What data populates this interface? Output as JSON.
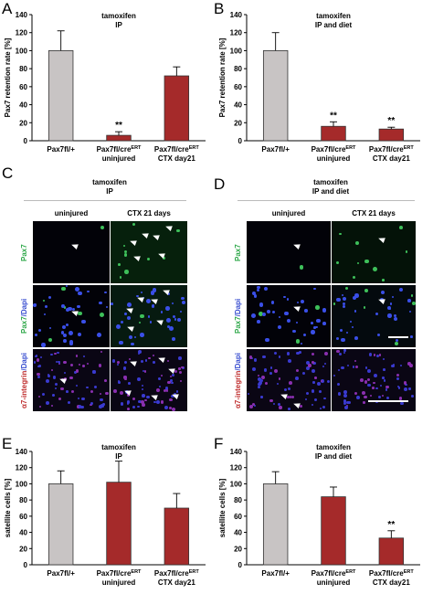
{
  "panels": {
    "A": "A",
    "B": "B",
    "C": "C",
    "D": "D",
    "E": "E",
    "F": "F"
  },
  "chart_data": [
    {
      "panel": "A",
      "type": "bar",
      "title_line1": "tamoxifen",
      "title_line2": "IP",
      "ylabel": "Pax7 retention rate [%]",
      "ylim": [
        0,
        140
      ],
      "yticks": [
        "0",
        "20",
        "40",
        "60",
        "80",
        "100",
        "120",
        "140"
      ],
      "categories": [
        {
          "line1": "Pax7fl/+",
          "line2": ""
        },
        {
          "line1": "Pax7fl/cre",
          "sup": "ERT",
          "line2": "uninjured"
        },
        {
          "line1": "Pax7fl/cre",
          "sup": "ERT",
          "line2": "CTX day21"
        }
      ],
      "values": [
        100,
        6,
        72
      ],
      "errors": [
        22,
        4,
        10
      ],
      "colors": [
        "#c8c4c4",
        "#a52a2a",
        "#a52a2a"
      ],
      "annotations": [
        "",
        "**",
        ""
      ]
    },
    {
      "panel": "B",
      "type": "bar",
      "title_line1": "tamoxifen",
      "title_line2": "IP and diet",
      "ylabel": "Pax7 retention rate [%]",
      "ylim": [
        0,
        140
      ],
      "yticks": [
        "0",
        "20",
        "40",
        "60",
        "80",
        "100",
        "120",
        "140"
      ],
      "categories": [
        {
          "line1": "Pax7fl/+",
          "line2": ""
        },
        {
          "line1": "Pax7fl/cre",
          "sup": "ERT",
          "line2": "uninjured"
        },
        {
          "line1": "Pax7fl/cre",
          "sup": "ERT",
          "line2": "CTX day21"
        }
      ],
      "values": [
        100,
        16,
        13
      ],
      "errors": [
        20,
        5,
        2
      ],
      "colors": [
        "#c8c4c4",
        "#a52a2a",
        "#a52a2a"
      ],
      "annotations": [
        "",
        "**",
        "**"
      ]
    },
    {
      "panel": "E",
      "type": "bar",
      "title_line1": "tamoxifen",
      "title_line2": "IP",
      "ylabel": "satellite cells [%]",
      "ylim": [
        0,
        140
      ],
      "yticks": [
        "0",
        "20",
        "40",
        "60",
        "80",
        "100",
        "120",
        "140"
      ],
      "categories": [
        {
          "line1": "Pax7fl/+",
          "line2": ""
        },
        {
          "line1": "Pax7fl/cre",
          "sup": "ERT",
          "line2": "uninjured"
        },
        {
          "line1": "Pax7fl/cre",
          "sup": "ERT",
          "line2": "CTX day21"
        }
      ],
      "values": [
        100,
        102,
        70
      ],
      "errors": [
        16,
        26,
        18
      ],
      "colors": [
        "#c8c4c4",
        "#a52a2a",
        "#a52a2a"
      ],
      "annotations": [
        "",
        "",
        ""
      ]
    },
    {
      "panel": "F",
      "type": "bar",
      "title_line1": "tamoxifen",
      "title_line2": "IP and diet",
      "ylabel": "satellite cells [%]",
      "ylim": [
        0,
        140
      ],
      "yticks": [
        "0",
        "20",
        "40",
        "60",
        "80",
        "100",
        "120",
        "140"
      ],
      "categories": [
        {
          "line1": "Pax7fl/+",
          "line2": ""
        },
        {
          "line1": "Pax7fl/cre",
          "sup": "ERT",
          "line2": "uninjured"
        },
        {
          "line1": "Pax7fl/cre",
          "sup": "ERT",
          "line2": "CTX day21"
        }
      ],
      "values": [
        100,
        84,
        33
      ],
      "errors": [
        15,
        12,
        9
      ],
      "colors": [
        "#c8c4c4",
        "#a52a2a",
        "#a52a2a"
      ],
      "annotations": [
        "",
        "",
        "**"
      ]
    }
  ],
  "microscopy": {
    "C": {
      "header_line1": "tamoxifen",
      "header_line2": "IP",
      "columns": [
        "uninjured",
        "CTX 21 days"
      ],
      "rows": [
        {
          "parts": [
            {
              "text": "Pax7",
              "color": "#2fa84a"
            }
          ]
        },
        {
          "parts": [
            {
              "text": "Pax7",
              "color": "#2fa84a"
            },
            {
              "text": "/Dapi",
              "color": "#3a4fd0"
            }
          ]
        },
        {
          "parts": [
            {
              "text": "α7-integrin",
              "color": "#c03030"
            },
            {
              "text": "/Dapi",
              "color": "#3a4fd0"
            }
          ]
        }
      ]
    },
    "D": {
      "header_line1": "tamoxifen",
      "header_line2": "IP and diet",
      "columns": [
        "uninjured",
        "CTX 21 days"
      ],
      "rows": [
        {
          "parts": [
            {
              "text": "Pax7",
              "color": "#2fa84a"
            }
          ]
        },
        {
          "parts": [
            {
              "text": "Pax7",
              "color": "#2fa84a"
            },
            {
              "text": "/Dapi",
              "color": "#3a4fd0"
            }
          ]
        },
        {
          "parts": [
            {
              "text": "α7-integrin",
              "color": "#c03030"
            },
            {
              "text": "/Dapi",
              "color": "#3a4fd0"
            }
          ]
        }
      ]
    }
  }
}
